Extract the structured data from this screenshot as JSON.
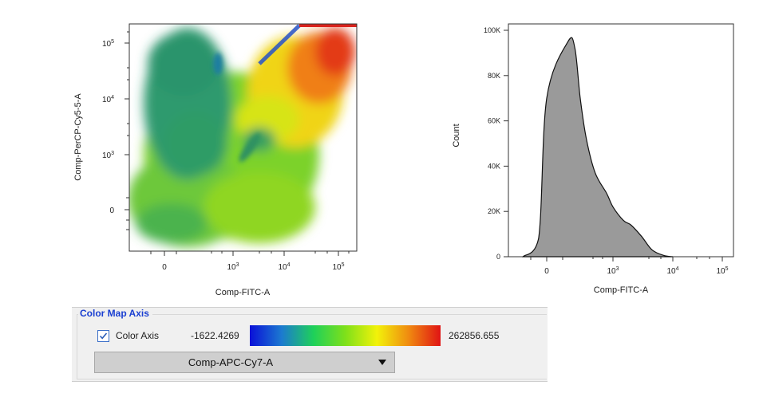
{
  "chart_data": [
    {
      "type": "heatmap",
      "title": "",
      "xlabel": "Comp-FITC-A",
      "ylabel": "Comp-PerCP-Cy5-5-A",
      "x_scale": "biexponential",
      "y_scale": "biexponential",
      "x_ticks": [
        "0",
        "10^3",
        "10^4",
        "10^5"
      ],
      "y_ticks": [
        "0",
        "10^3",
        "10^4",
        "10^5"
      ],
      "color_by": "Comp-APC-Cy7-A"
    },
    {
      "type": "area",
      "title": "",
      "xlabel": "Comp-FITC-A",
      "ylabel": "Count",
      "x_scale": "biexponential",
      "ylim": [
        0,
        100000
      ],
      "x_ticks": [
        "0",
        "10^3",
        "10^4",
        "10^5"
      ],
      "y_ticks": [
        "0",
        "20K",
        "40K",
        "60K",
        "80K",
        "100K"
      ],
      "x": [
        -350,
        -120,
        0,
        80,
        150,
        220,
        320,
        500,
        800,
        1000,
        1500,
        2000,
        3000,
        4500,
        7000,
        10000
      ],
      "values": [
        0,
        8000,
        70000,
        95000,
        92000,
        70000,
        52000,
        37000,
        28000,
        22000,
        16000,
        14000,
        9000,
        3000,
        600,
        0
      ]
    }
  ],
  "color_map": {
    "section_title": "Color Map Axis",
    "checkbox_label": "Color Axis",
    "checkbox_checked": true,
    "min_value": "-1622.4269",
    "max_value": "262856.655",
    "gradient_colors": [
      "#0a10d8",
      "#1c7ad0",
      "#1ed05a",
      "#7ee01a",
      "#f2f20a",
      "#f08a10",
      "#e01414"
    ],
    "axis_parameter": "Comp-APC-Cy7-A"
  }
}
